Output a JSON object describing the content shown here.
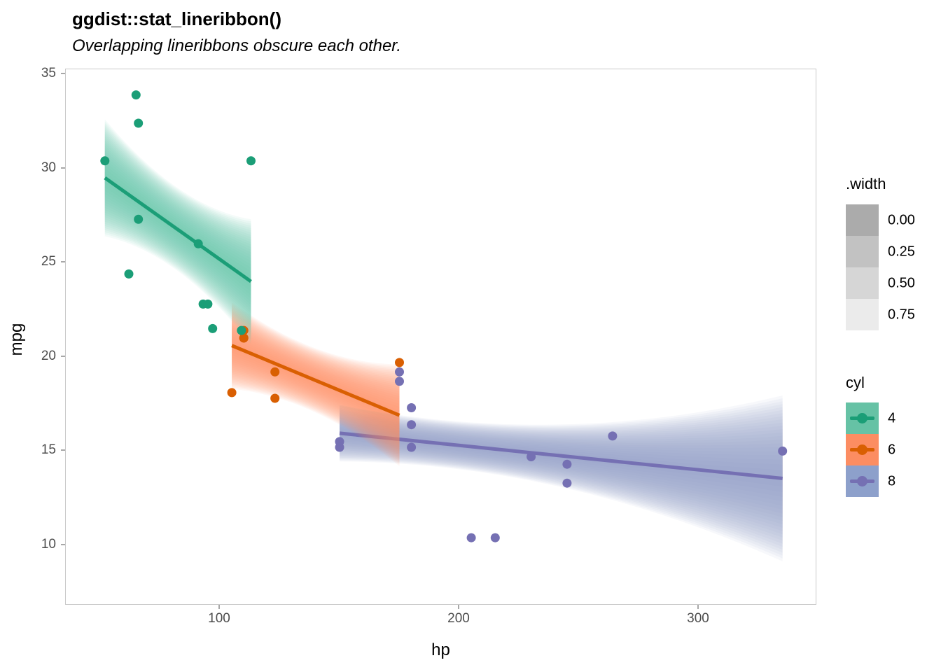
{
  "header": {
    "title": "ggdist::stat_lineribbon()",
    "subtitle": "Overlapping lineribbons obscure each other."
  },
  "axes": {
    "x_title": "hp",
    "y_title": "mpg"
  },
  "legends": {
    "width": {
      "title": ".width",
      "items": [
        {
          "label": "0.00",
          "swatch": "#ababab"
        },
        {
          "label": "0.25",
          "swatch": "#c2c2c2"
        },
        {
          "label": "0.50",
          "swatch": "#d6d6d6"
        },
        {
          "label": "0.75",
          "swatch": "#ebebeb"
        }
      ]
    },
    "cyl": {
      "title": "cyl",
      "items": [
        {
          "label": "4",
          "key_fill": "#66c2a5",
          "key_stroke": "#1b9e77"
        },
        {
          "label": "6",
          "key_fill": "#fc8d62",
          "key_stroke": "#d95f02"
        },
        {
          "label": "8",
          "key_fill": "#8da0cb",
          "key_stroke": "#7570b3"
        }
      ]
    }
  },
  "chart_data": {
    "type": "scatter",
    "subtype": "lineribbon: per-group linear fit line with gradient uncertainty ribbon",
    "title": "ggdist::stat_lineribbon()",
    "xlabel": "hp",
    "ylabel": "mpg",
    "grid": false,
    "x_axis": {
      "ticks": [
        100,
        200,
        300
      ],
      "domain": [
        37,
        350
      ]
    },
    "y_axis": {
      "ticks": [
        10,
        15,
        20,
        25,
        30,
        35
      ],
      "domain": [
        6.8,
        35.4
      ]
    },
    "legend_position": "right",
    "series": [
      {
        "name": "4",
        "line_color": "#1b9e77",
        "ribbon_fill": "#66c2a5",
        "points": [
          [
            52,
            30.4
          ],
          [
            62,
            24.4
          ],
          [
            65,
            33.9
          ],
          [
            66,
            32.4
          ],
          [
            66,
            27.3
          ],
          [
            91,
            26.0
          ],
          [
            93,
            22.8
          ],
          [
            95,
            22.8
          ],
          [
            97,
            21.5
          ],
          [
            109,
            21.4
          ],
          [
            113,
            30.4
          ]
        ],
        "fit_line": {
          "x": [
            52,
            113
          ],
          "y": [
            29.5,
            24.0
          ]
        },
        "ribbon_halfwidth_mpg": [
          3.1,
          2.2,
          3.3
        ]
      },
      {
        "name": "6",
        "line_color": "#d95f02",
        "ribbon_fill": "#fc8d62",
        "points": [
          [
            105,
            18.1
          ],
          [
            110,
            21.0
          ],
          [
            110,
            21.0
          ],
          [
            110,
            21.4
          ],
          [
            123,
            19.2
          ],
          [
            123,
            17.8
          ],
          [
            175,
            19.7
          ]
        ],
        "fit_line": {
          "x": [
            105,
            175
          ],
          "y": [
            20.6,
            16.9
          ]
        },
        "ribbon_halfwidth_mpg": [
          2.3,
          1.7,
          2.7
        ]
      },
      {
        "name": "8",
        "line_color": "#7570b3",
        "ribbon_fill": "#8da0cb",
        "points": [
          [
            150,
            15.5
          ],
          [
            150,
            15.2
          ],
          [
            175,
            18.7
          ],
          [
            175,
            19.2
          ],
          [
            180,
            16.4
          ],
          [
            180,
            17.3
          ],
          [
            180,
            15.2
          ],
          [
            205,
            10.4
          ],
          [
            215,
            10.4
          ],
          [
            230,
            14.7
          ],
          [
            245,
            14.3
          ],
          [
            245,
            13.3
          ],
          [
            264,
            15.8
          ],
          [
            335,
            15.0
          ]
        ],
        "fit_line": {
          "x": [
            150,
            335
          ],
          "y": [
            15.95,
            13.55
          ]
        },
        "ribbon_halfwidth_mpg": [
          1.5,
          1.66,
          4.4
        ]
      }
    ]
  }
}
